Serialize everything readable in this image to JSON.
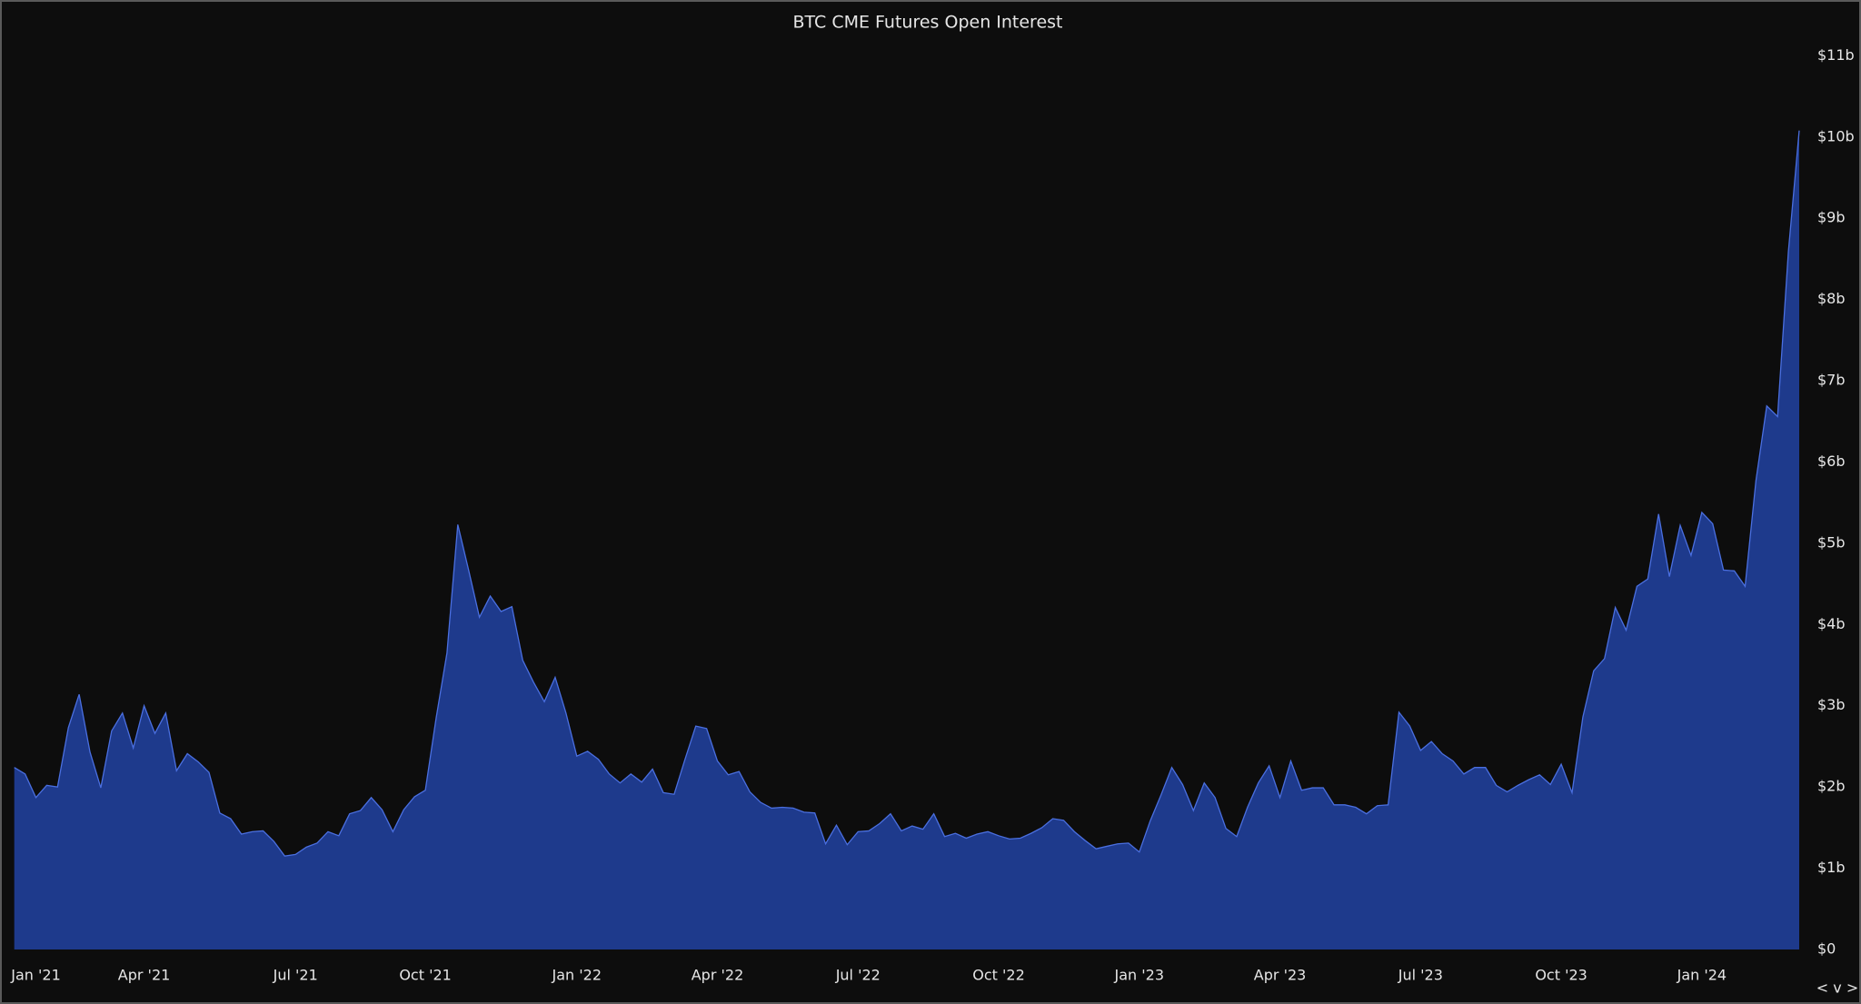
{
  "chart_data": {
    "type": "area",
    "title": "BTC CME Futures Open Interest",
    "color": "#1e3a8c",
    "line_color": "#4a6fe0",
    "categories": [
      null,
      null,
      "Jan '21",
      null,
      null,
      null,
      null,
      null,
      null,
      null,
      null,
      null,
      "Apr '21",
      null,
      null,
      null,
      null,
      null,
      null,
      null,
      null,
      null,
      null,
      null,
      null,
      null,
      "Jul '21",
      null,
      null,
      null,
      null,
      null,
      null,
      null,
      null,
      null,
      null,
      null,
      "Oct '21",
      null,
      null,
      null,
      null,
      null,
      null,
      null,
      null,
      null,
      null,
      null,
      null,
      null,
      "Jan '22",
      null,
      null,
      null,
      null,
      null,
      null,
      null,
      null,
      null,
      null,
      null,
      null,
      "Apr '22",
      null,
      null,
      null,
      null,
      null,
      null,
      null,
      null,
      null,
      null,
      null,
      null,
      "Jul '22",
      null,
      null,
      null,
      null,
      null,
      null,
      null,
      null,
      null,
      null,
      null,
      null,
      "Oct '22",
      null,
      null,
      null,
      null,
      null,
      null,
      null,
      null,
      null,
      null,
      null,
      null,
      "Jan '23",
      null,
      null,
      null,
      null,
      null,
      null,
      null,
      null,
      null,
      null,
      null,
      null,
      "Apr '23",
      null,
      null,
      null,
      null,
      null,
      null,
      null,
      null,
      null,
      null,
      null,
      null,
      "Jul '23",
      null,
      null,
      null,
      null,
      null,
      null,
      null,
      null,
      null,
      null,
      null,
      null,
      "Oct '23",
      null,
      null,
      null,
      null,
      null,
      null,
      null,
      null,
      null,
      null,
      null,
      null,
      "Jan '24",
      null,
      null,
      null,
      null,
      null,
      null,
      null,
      null,
      null
    ],
    "values": [
      2.24,
      2.16,
      1.87,
      2.02,
      2.0,
      2.73,
      3.14,
      2.43,
      1.99,
      2.69,
      2.91,
      2.48,
      3.0,
      2.66,
      2.91,
      2.2,
      2.41,
      2.31,
      2.18,
      1.68,
      1.61,
      1.42,
      1.45,
      1.46,
      1.33,
      1.15,
      1.17,
      1.26,
      1.31,
      1.45,
      1.4,
      1.67,
      1.71,
      1.87,
      1.72,
      1.45,
      1.72,
      1.88,
      1.96,
      2.85,
      3.65,
      5.23,
      4.67,
      4.09,
      4.35,
      4.16,
      4.22,
      3.56,
      3.29,
      3.05,
      3.35,
      2.91,
      2.38,
      2.44,
      2.34,
      2.16,
      2.05,
      2.16,
      2.06,
      2.22,
      1.93,
      1.91,
      2.34,
      2.75,
      2.72,
      2.32,
      2.15,
      2.19,
      1.94,
      1.81,
      1.74,
      1.75,
      1.74,
      1.69,
      1.68,
      1.3,
      1.53,
      1.29,
      1.45,
      1.46,
      1.55,
      1.67,
      1.46,
      1.52,
      1.48,
      1.67,
      1.39,
      1.43,
      1.37,
      1.42,
      1.45,
      1.4,
      1.36,
      1.37,
      1.43,
      1.5,
      1.61,
      1.59,
      1.45,
      1.34,
      1.24,
      1.27,
      1.3,
      1.31,
      1.2,
      1.58,
      1.9,
      2.24,
      2.03,
      1.71,
      2.05,
      1.87,
      1.49,
      1.39,
      1.75,
      2.05,
      2.26,
      1.87,
      2.32,
      1.96,
      1.99,
      1.99,
      1.78,
      1.78,
      1.75,
      1.67,
      1.77,
      1.78,
      2.92,
      2.75,
      2.45,
      2.56,
      2.41,
      2.32,
      2.16,
      2.24,
      2.24,
      2.02,
      1.94,
      2.02,
      2.09,
      2.15,
      2.03,
      2.28,
      1.93,
      2.86,
      3.43,
      3.58,
      4.21,
      3.93,
      4.47,
      4.56,
      5.36,
      4.59,
      5.22,
      4.85,
      5.38,
      5.24,
      4.67,
      4.66,
      4.47,
      5.77,
      6.69,
      6.56,
      8.59,
      10.08
    ],
    "ylim": [
      0,
      11
    ],
    "yticks": [
      {
        "value": 0,
        "label": "$0"
      },
      {
        "value": 1,
        "label": "$1b"
      },
      {
        "value": 2,
        "label": "$2b"
      },
      {
        "value": 3,
        "label": "$3b"
      },
      {
        "value": 4,
        "label": "$4b"
      },
      {
        "value": 5,
        "label": "$5b"
      },
      {
        "value": 6,
        "label": "$6b"
      },
      {
        "value": 7,
        "label": "$7b"
      },
      {
        "value": 8,
        "label": "$8b"
      },
      {
        "value": 9,
        "label": "$9b"
      },
      {
        "value": 10,
        "label": "$10b"
      },
      {
        "value": 11,
        "label": "$11b"
      }
    ],
    "grid": false
  },
  "controls": "< v >"
}
